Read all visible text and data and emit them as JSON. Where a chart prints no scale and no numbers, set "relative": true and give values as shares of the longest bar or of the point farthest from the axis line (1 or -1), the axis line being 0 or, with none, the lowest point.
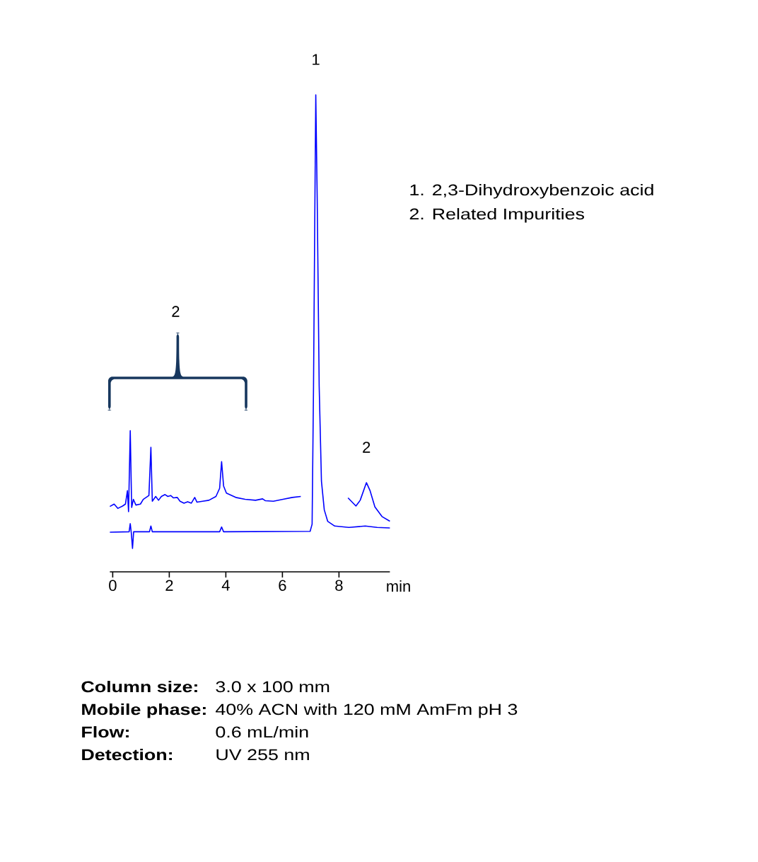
{
  "chart_data": {
    "type": "line",
    "relative": true,
    "xlabel": "min",
    "xlim": [
      -0.1,
      9.8
    ],
    "xticks": [
      0,
      2,
      4,
      6,
      8
    ],
    "tick_labels": "x",
    "line_style": "solid",
    "series": [
      {
        "color": "#0000ff",
        "x": [
          -0.1,
          0.05,
          0.18,
          0.35,
          0.45,
          0.52,
          0.56,
          0.62,
          0.67,
          0.73,
          0.82,
          0.98,
          1.08,
          1.28,
          1.35,
          1.4,
          1.52,
          1.62,
          1.72,
          1.85,
          1.95,
          2.05,
          2.15,
          2.28,
          2.38,
          2.52,
          2.65,
          2.78,
          2.9,
          2.98,
          3.18,
          3.4,
          3.65,
          3.78,
          3.85,
          3.92,
          4.02,
          4.35,
          4.68,
          5.05,
          5.3,
          5.4,
          5.68,
          6.02,
          6.35,
          6.65,
          7.5,
          8.32,
          8.6,
          8.75,
          8.97,
          9.1,
          9.27,
          9.52,
          9.8
        ],
        "values": [
          0.137,
          0.142,
          0.133,
          0.138,
          0.142,
          0.17,
          0.126,
          0.296,
          0.135,
          0.152,
          0.14,
          0.142,
          0.152,
          0.16,
          0.261,
          0.148,
          0.158,
          0.15,
          0.158,
          0.162,
          0.158,
          0.16,
          0.155,
          0.156,
          0.148,
          0.144,
          0.147,
          0.144,
          0.156,
          0.146,
          0.148,
          0.15,
          0.158,
          0.175,
          0.231,
          0.18,
          0.165,
          0.156,
          0.152,
          0.15,
          0.153,
          0.149,
          0.148,
          0.152,
          0.156,
          0.158,
          null,
          0.155,
          0.138,
          0.15,
          0.187,
          0.17,
          0.136,
          0.116,
          0.106
        ]
      },
      {
        "color": "#0000ff",
        "x": [
          -0.1,
          0.58,
          0.62,
          0.66,
          0.7,
          0.74,
          1.3,
          1.35,
          1.4,
          3.78,
          3.85,
          3.92,
          6.98,
          7.05,
          7.1,
          7.15,
          7.18,
          7.23,
          7.3,
          7.38,
          7.48,
          7.6,
          7.85,
          8.35,
          8.93,
          9.35,
          9.8
        ],
        "values": [
          0.083,
          0.084,
          0.101,
          0.08,
          0.049,
          0.084,
          0.084,
          0.096,
          0.084,
          0.084,
          0.094,
          0.084,
          0.085,
          0.1,
          0.389,
          0.783,
          1.0,
          0.783,
          0.389,
          0.19,
          0.13,
          0.106,
          0.096,
          0.093,
          0.096,
          0.093,
          0.092
        ]
      }
    ],
    "annotations": [
      {
        "text": "1",
        "x": 7.18,
        "y": 1.0
      },
      {
        "text": "2",
        "x": 8.97,
        "y": 0.187
      },
      "2",
      "1. 2,3-Dihydroxybenzoic acid",
      "2. Related Impurities",
      "Column size:",
      "3.0 x 100 mm",
      "Mobile phase:",
      "40% ACN with 120 mM AmFm pH 3",
      "Flow:",
      "0.6 mL/min",
      "Detection:",
      "UV 255 nm"
    ]
  }
}
